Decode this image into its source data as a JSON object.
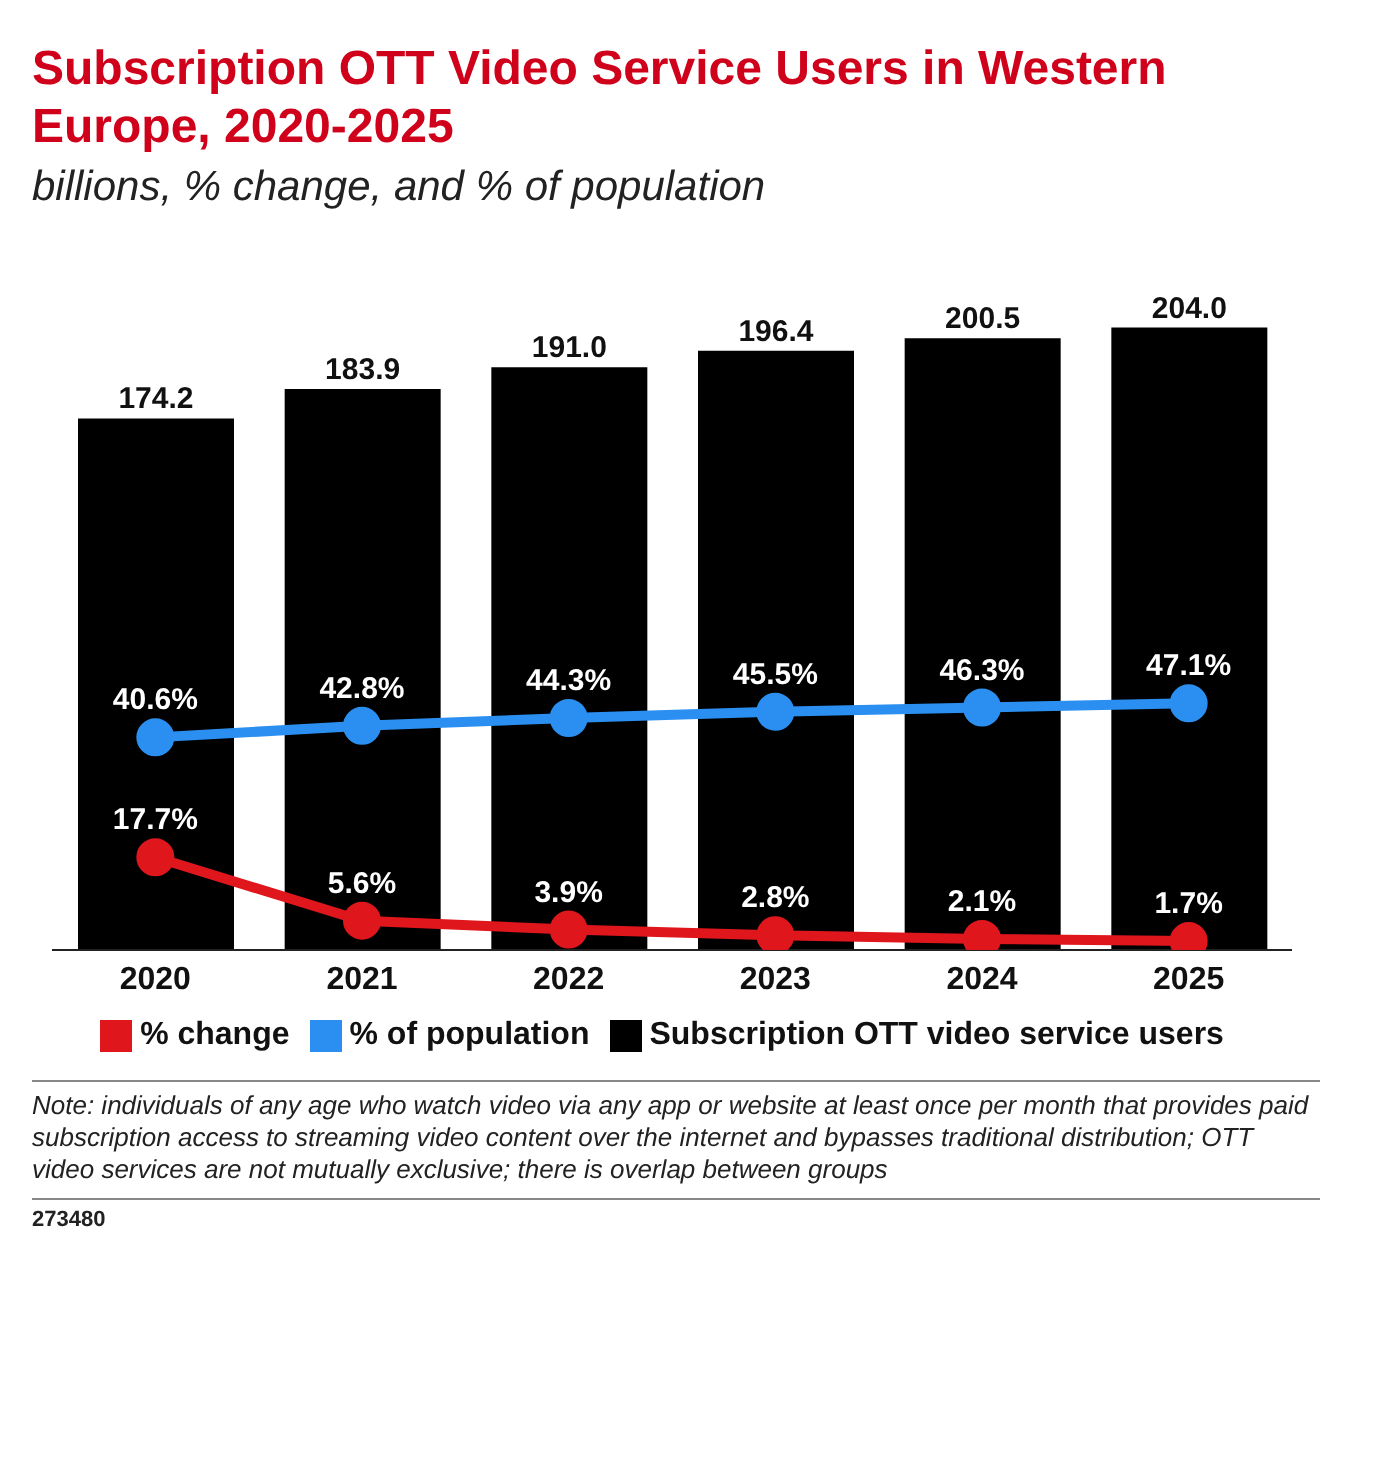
{
  "chart_data": {
    "type": "bar",
    "title": "Subscription OTT Video Service Users in Western Europe, 2020-2025",
    "subtitle": "billions, % change, and % of population",
    "categories": [
      "2020",
      "2021",
      "2022",
      "2023",
      "2024",
      "2025"
    ],
    "series": [
      {
        "name": "Subscription OTT video service users",
        "color": "#000000",
        "values": [
          174.2,
          183.9,
          191.0,
          196.4,
          200.5,
          204.0
        ],
        "value_labels": [
          "174.2",
          "183.9",
          "191.0",
          "196.4",
          "200.5",
          "204.0"
        ]
      },
      {
        "name": "% change",
        "type": "line",
        "axis": "y2",
        "color": "#e0161d",
        "values": [
          17.7,
          5.6,
          3.9,
          2.8,
          2.1,
          1.7
        ],
        "value_labels": [
          "17.7%",
          "5.6%",
          "3.9%",
          "2.8%",
          "2.1%",
          "1.7%"
        ]
      },
      {
        "name": "% of population",
        "type": "line",
        "axis": "y2",
        "color": "#2a8ff0",
        "values": [
          40.6,
          42.8,
          44.3,
          45.5,
          46.3,
          47.1
        ],
        "value_labels": [
          "40.6%",
          "42.8%",
          "44.3%",
          "45.5%",
          "46.3%",
          "47.1%"
        ]
      }
    ],
    "legend": "bottom",
    "marker": "circle",
    "line_style": "solid",
    "tick_labels": "x",
    "annotations": [
      "Note: individuals of any age who watch video via any app or website at least once per month that provides paid subscription access to streaming video content over the internet and bypasses traditional distribution; OTT video services are not mutually exclusive; there is overlap between groups",
      "273480"
    ]
  }
}
